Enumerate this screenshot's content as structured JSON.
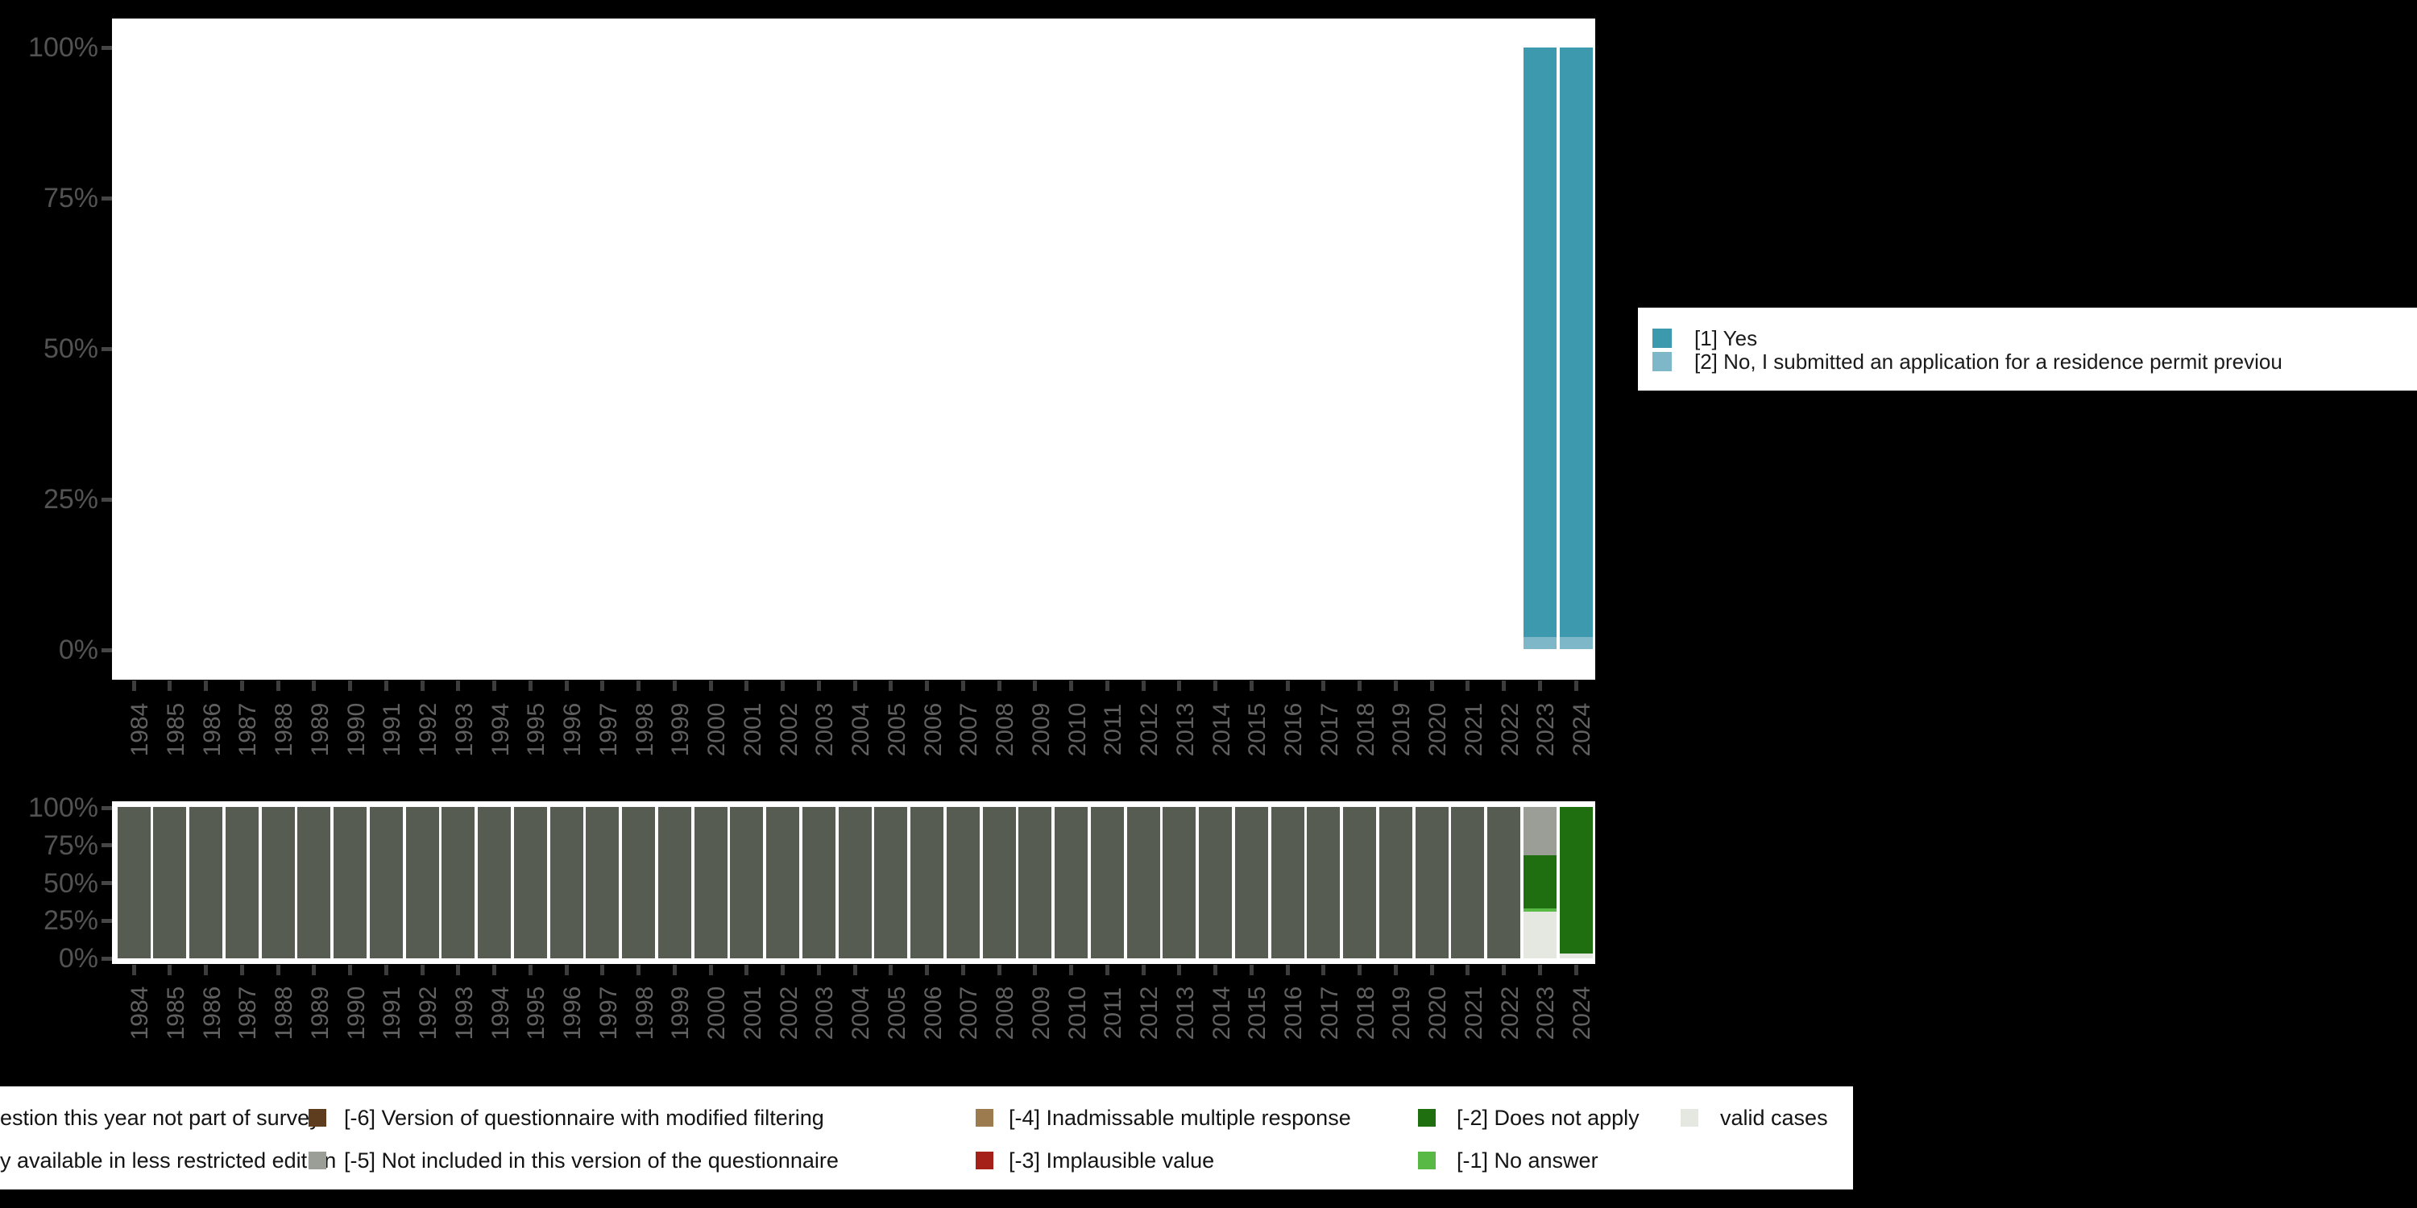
{
  "colors": {
    "yes": "#3D99AE",
    "no": "#7EB8C8",
    "not_part_of_survey": "#565C52",
    "version_modified_filtering": "#5E3C1E",
    "not_included_version": "#9A9E96",
    "inadmissable_multiple": "#9C7B4E",
    "implausible": "#A42019",
    "does_not_apply": "#1F6E10",
    "no_answer": "#58BA44",
    "valid": "#E4E8E1",
    "panel_background": "#FFFFFF",
    "page_background": "#000000"
  },
  "years": [
    "1984",
    "1985",
    "1986",
    "1987",
    "1988",
    "1989",
    "1990",
    "1991",
    "1992",
    "1993",
    "1994",
    "1995",
    "1996",
    "1997",
    "1998",
    "1999",
    "2000",
    "2001",
    "2002",
    "2003",
    "2004",
    "2005",
    "2006",
    "2007",
    "2008",
    "2009",
    "2010",
    "2011",
    "2012",
    "2013",
    "2014",
    "2015",
    "2016",
    "2017",
    "2018",
    "2019",
    "2020",
    "2021",
    "2022",
    "2023",
    "2024"
  ],
  "response_chart": {
    "y_tick_labels": [
      "100%",
      "75%",
      "50%",
      "25%",
      "0%"
    ],
    "bars": [
      {
        "year": "2023",
        "segments": [
          {
            "color": "yes",
            "pct": 98
          },
          {
            "color": "no",
            "pct": 2
          }
        ]
      },
      {
        "year": "2024",
        "segments": [
          {
            "color": "yes",
            "pct": 98
          },
          {
            "color": "no",
            "pct": 2
          }
        ]
      }
    ]
  },
  "response_legend": {
    "items": [
      {
        "color": "yes",
        "label": "[1] Yes"
      },
      {
        "color": "no",
        "label": "[2] No, I submitted an application for a residence permit previou"
      }
    ]
  },
  "missing_chart": {
    "y_tick_labels": [
      "100%",
      "75%",
      "50%",
      "25%",
      "0%"
    ],
    "default_segments": [
      {
        "color": "not_part_of_survey",
        "pct": 100
      }
    ],
    "bars": [
      {
        "year": "2023",
        "segments": [
          {
            "color": "not_included_version",
            "pct": 32
          },
          {
            "color": "does_not_apply",
            "pct": 35
          },
          {
            "color": "no_answer",
            "pct": 2
          },
          {
            "color": "valid",
            "pct": 31
          }
        ]
      },
      {
        "year": "2024",
        "segments": [
          {
            "color": "does_not_apply",
            "pct": 97
          },
          {
            "color": "valid",
            "pct": 3
          }
        ]
      }
    ]
  },
  "missing_legend": {
    "rows": [
      [
        {
          "color": null,
          "label": "estion this year not part of survey"
        },
        {
          "color": "version_modified_filtering",
          "label": "[-6] Version of questionnaire with modified filtering"
        },
        {
          "color": "inadmissable_multiple",
          "label": "[-4] Inadmissable multiple response"
        },
        {
          "color": "does_not_apply",
          "label": "[-2] Does not apply"
        },
        {
          "color": "valid",
          "label": "valid cases"
        }
      ],
      [
        {
          "color": null,
          "label": "y available in less restricted edition"
        },
        {
          "color": "not_included_version",
          "label": "[-5] Not included in this version of the questionnaire"
        },
        {
          "color": "implausible",
          "label": "[-3] Implausible value"
        },
        {
          "color": "no_answer",
          "label": "[-1] No answer"
        }
      ]
    ]
  },
  "chart_data": [
    {
      "type": "bar",
      "stacked": true,
      "title": "",
      "xlabel": "",
      "ylabel": "",
      "categories": [
        1984,
        1985,
        1986,
        1987,
        1988,
        1989,
        1990,
        1991,
        1992,
        1993,
        1994,
        1995,
        1996,
        1997,
        1998,
        1999,
        2000,
        2001,
        2002,
        2003,
        2004,
        2005,
        2006,
        2007,
        2008,
        2009,
        2010,
        2011,
        2012,
        2013,
        2014,
        2015,
        2016,
        2017,
        2018,
        2019,
        2020,
        2021,
        2022,
        2023,
        2024
      ],
      "y_ticks": [
        "0%",
        "25%",
        "50%",
        "75%",
        "100%"
      ],
      "ylim": [
        0,
        100
      ],
      "grid": false,
      "legend_position": "right",
      "series": [
        {
          "name": "[1] Yes",
          "color": "#3D99AE",
          "values": [
            0,
            0,
            0,
            0,
            0,
            0,
            0,
            0,
            0,
            0,
            0,
            0,
            0,
            0,
            0,
            0,
            0,
            0,
            0,
            0,
            0,
            0,
            0,
            0,
            0,
            0,
            0,
            0,
            0,
            0,
            0,
            0,
            0,
            0,
            0,
            0,
            0,
            0,
            0,
            98,
            98
          ]
        },
        {
          "name": "[2] No, I submitted an application for a residence permit previou",
          "color": "#7EB8C8",
          "values": [
            0,
            0,
            0,
            0,
            0,
            0,
            0,
            0,
            0,
            0,
            0,
            0,
            0,
            0,
            0,
            0,
            0,
            0,
            0,
            0,
            0,
            0,
            0,
            0,
            0,
            0,
            0,
            0,
            0,
            0,
            0,
            0,
            0,
            0,
            0,
            0,
            0,
            0,
            0,
            2,
            2
          ]
        }
      ]
    },
    {
      "type": "bar",
      "stacked": true,
      "title": "",
      "xlabel": "",
      "ylabel": "",
      "categories": [
        1984,
        1985,
        1986,
        1987,
        1988,
        1989,
        1990,
        1991,
        1992,
        1993,
        1994,
        1995,
        1996,
        1997,
        1998,
        1999,
        2000,
        2001,
        2002,
        2003,
        2004,
        2005,
        2006,
        2007,
        2008,
        2009,
        2010,
        2011,
        2012,
        2013,
        2014,
        2015,
        2016,
        2017,
        2018,
        2019,
        2020,
        2021,
        2022,
        2023,
        2024
      ],
      "y_ticks": [
        "0%",
        "25%",
        "50%",
        "75%",
        "100%"
      ],
      "ylim": [
        0,
        100
      ],
      "grid": false,
      "legend_position": "bottom",
      "series": [
        {
          "name": "estion this year not part of survey",
          "color": "#565C52",
          "values": [
            100,
            100,
            100,
            100,
            100,
            100,
            100,
            100,
            100,
            100,
            100,
            100,
            100,
            100,
            100,
            100,
            100,
            100,
            100,
            100,
            100,
            100,
            100,
            100,
            100,
            100,
            100,
            100,
            100,
            100,
            100,
            100,
            100,
            100,
            100,
            100,
            100,
            100,
            100,
            0,
            0
          ]
        },
        {
          "name": "[-5] Not included in this version of the questionnaire",
          "color": "#9A9E96",
          "values": [
            0,
            0,
            0,
            0,
            0,
            0,
            0,
            0,
            0,
            0,
            0,
            0,
            0,
            0,
            0,
            0,
            0,
            0,
            0,
            0,
            0,
            0,
            0,
            0,
            0,
            0,
            0,
            0,
            0,
            0,
            0,
            0,
            0,
            0,
            0,
            0,
            0,
            0,
            0,
            32,
            0
          ]
        },
        {
          "name": "[-2] Does not apply",
          "color": "#1F6E10",
          "values": [
            0,
            0,
            0,
            0,
            0,
            0,
            0,
            0,
            0,
            0,
            0,
            0,
            0,
            0,
            0,
            0,
            0,
            0,
            0,
            0,
            0,
            0,
            0,
            0,
            0,
            0,
            0,
            0,
            0,
            0,
            0,
            0,
            0,
            0,
            0,
            0,
            0,
            0,
            0,
            35,
            97
          ]
        },
        {
          "name": "[-1] No answer",
          "color": "#58BA44",
          "values": [
            0,
            0,
            0,
            0,
            0,
            0,
            0,
            0,
            0,
            0,
            0,
            0,
            0,
            0,
            0,
            0,
            0,
            0,
            0,
            0,
            0,
            0,
            0,
            0,
            0,
            0,
            0,
            0,
            0,
            0,
            0,
            0,
            0,
            0,
            0,
            0,
            0,
            0,
            0,
            2,
            0
          ]
        },
        {
          "name": "valid cases",
          "color": "#E4E8E1",
          "values": [
            0,
            0,
            0,
            0,
            0,
            0,
            0,
            0,
            0,
            0,
            0,
            0,
            0,
            0,
            0,
            0,
            0,
            0,
            0,
            0,
            0,
            0,
            0,
            0,
            0,
            0,
            0,
            0,
            0,
            0,
            0,
            0,
            0,
            0,
            0,
            0,
            0,
            0,
            0,
            31,
            3
          ]
        }
      ]
    }
  ]
}
